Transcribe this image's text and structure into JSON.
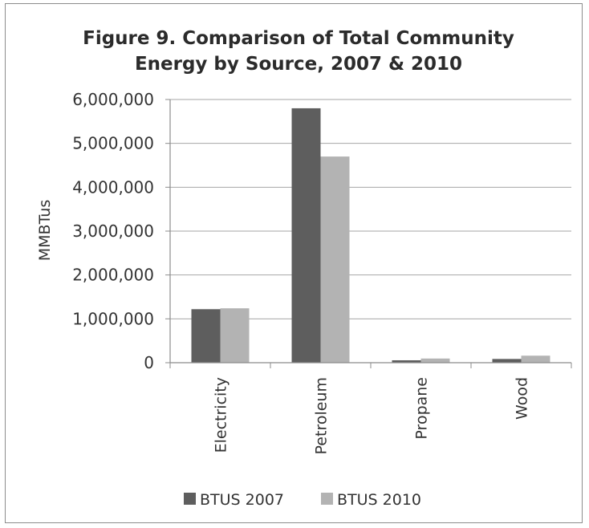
{
  "chart_data": {
    "type": "bar",
    "title": "Figure 9. Comparison of Total Community Energy by Source, 2007 & 2010",
    "title_lines": [
      "Figure 9. Comparison of Total Community",
      "Energy by Source, 2007 & 2010"
    ],
    "xlabel": "",
    "ylabel": "MMBTus",
    "categories": [
      "Electricity",
      "Petroleum",
      "Propane",
      "Wood"
    ],
    "series": [
      {
        "name": "BTUS 2007",
        "color": "#5e5e5e",
        "values": [
          1220000,
          5800000,
          55000,
          85000
        ]
      },
      {
        "name": "BTUS 2010",
        "color": "#b3b3b3",
        "values": [
          1240000,
          4700000,
          95000,
          160000
        ]
      }
    ],
    "ylim": [
      0,
      6000000
    ],
    "yticks": [
      0,
      1000000,
      2000000,
      3000000,
      4000000,
      5000000,
      6000000
    ],
    "ytick_labels": [
      "0",
      "1,000,000",
      "2,000,000",
      "3,000,000",
      "4,000,000",
      "5,000,000",
      "6,000,000"
    ],
    "grid": true,
    "legend_position": "bottom"
  }
}
